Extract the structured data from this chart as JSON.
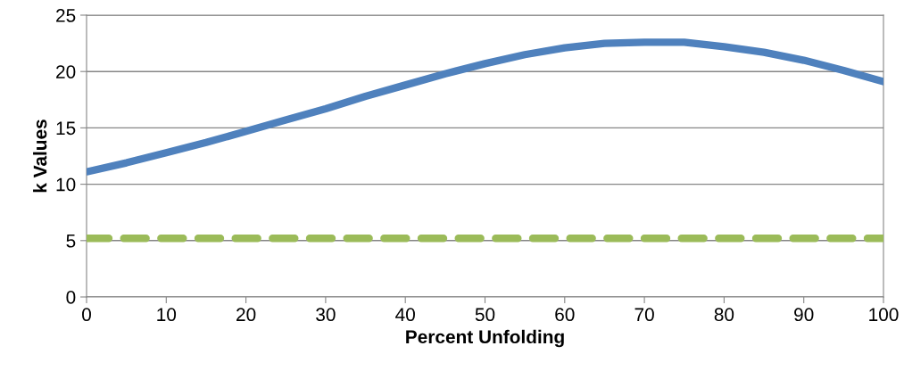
{
  "chart_data": {
    "type": "line",
    "xlabel": "Percent Unfolding",
    "ylabel": "k Values",
    "x": [
      0,
      5,
      10,
      15,
      20,
      25,
      30,
      35,
      40,
      45,
      50,
      55,
      60,
      65,
      70,
      75,
      80,
      85,
      90,
      95,
      100
    ],
    "series": [
      {
        "color": "#4f81bd",
        "line_style": "solid",
        "values": [
          11.1,
          11.9,
          12.8,
          13.7,
          14.7,
          15.7,
          16.7,
          17.8,
          18.8,
          19.8,
          20.7,
          21.5,
          22.1,
          22.5,
          22.6,
          22.6,
          22.2,
          21.7,
          21.0,
          20.1,
          19.1
        ]
      },
      {
        "color": "#9bbb59",
        "line_style": "dashed",
        "values": [
          5.2,
          5.2,
          5.2,
          5.2,
          5.2,
          5.2,
          5.2,
          5.2,
          5.2,
          5.2,
          5.2,
          5.2,
          5.2,
          5.2,
          5.2,
          5.2,
          5.2,
          5.2,
          5.2,
          5.2,
          5.2
        ]
      }
    ],
    "xlim": [
      0,
      100
    ],
    "xticks": [
      0,
      10,
      20,
      30,
      40,
      50,
      60,
      70,
      80,
      90,
      100
    ],
    "ylim": [
      0,
      25
    ],
    "yticks": [
      0,
      5,
      10,
      15,
      20,
      25
    ],
    "grid": "y",
    "marker": "none",
    "legend": false
  }
}
